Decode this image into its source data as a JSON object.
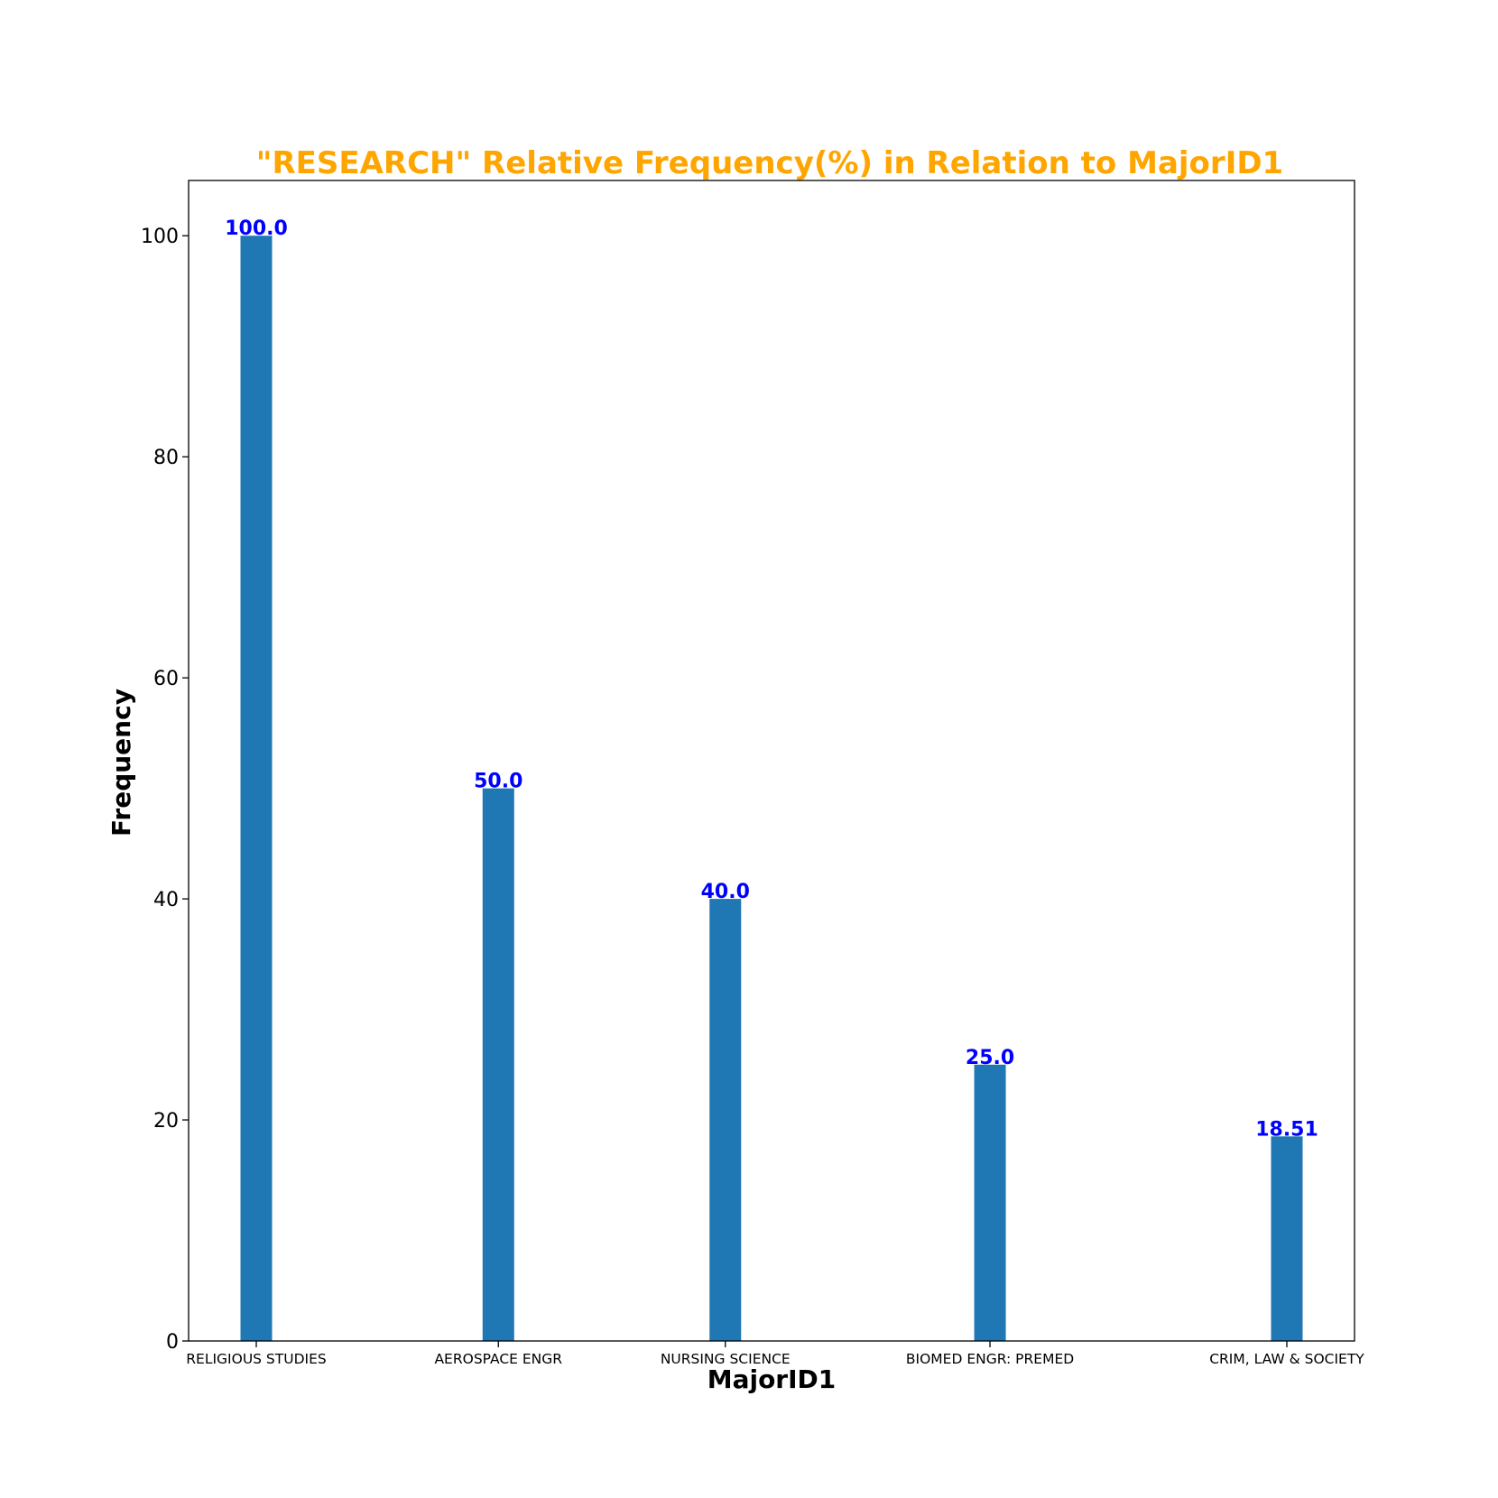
{
  "chart_data": {
    "type": "bar",
    "title": "\"RESEARCH\" Relative Frequency(%) in Relation to MajorID1",
    "xlabel": "MajorID1",
    "ylabel": "Frequency",
    "categories": [
      "RELIGIOUS STUDIES",
      "AEROSPACE ENGR",
      "NURSING SCIENCE",
      "BIOMED ENGR: PREMED",
      "CRIM, LAW & SOCIETY"
    ],
    "x": [
      0,
      0.911,
      1.765,
      2.761,
      3.878
    ],
    "values": [
      100.0,
      50.0,
      40.0,
      25.0,
      18.51
    ],
    "value_labels": [
      "100.0",
      "50.0",
      "40.0",
      "25.0",
      "18.51"
    ],
    "ylim": [
      0,
      105
    ],
    "yticks": [
      0,
      20,
      40,
      60,
      80,
      100
    ],
    "ytick_labels": [
      "0",
      "20",
      "40",
      "60",
      "80",
      "100"
    ],
    "grid": false,
    "colors": {
      "bar": "#1f77b4",
      "title": "#ffa500",
      "bar_label": "#0000ff",
      "axis": "#000000"
    }
  }
}
